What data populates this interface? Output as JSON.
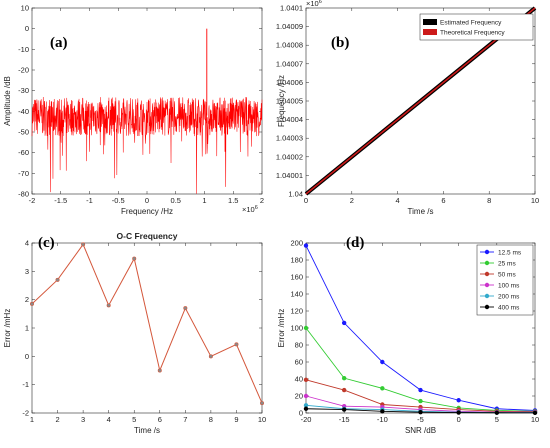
{
  "colors": {
    "red": "#ff0000",
    "dark_red": "#cc1a1a",
    "black": "#000000",
    "line_c": "#d4573b"
  },
  "chart_data": [
    {
      "id": "a",
      "panel_label": "(a)",
      "type": "line",
      "title": "",
      "xlabel": "Frequency /Hz",
      "ylabel": "Amplitude /dB",
      "xlim": [
        -2,
        2
      ],
      "ylim": [
        -80,
        10
      ],
      "x_exponent": "×10",
      "x_exponent_power": "6",
      "xticks": [
        -2,
        -1.5,
        -1,
        -0.5,
        0,
        0.5,
        1,
        1.5,
        2
      ],
      "xtick_labels": [
        "-2",
        "-1.5",
        "-1",
        "-0.5",
        "0",
        "0.5",
        "1",
        "1.5",
        "2"
      ],
      "yticks": [
        -80,
        -70,
        -60,
        -50,
        -40,
        -30,
        -20,
        -10,
        0,
        10
      ],
      "ytick_labels": [
        "-80",
        "-70",
        "-60",
        "-50",
        "-40",
        "-30",
        "-20",
        "-10",
        "0",
        "10"
      ],
      "series": [
        {
          "color": "#ff0000",
          "noise_mean": -42,
          "noise_band": [
            -52,
            -33
          ],
          "peaks": [
            {
              "x": 1.04,
              "y": 0
            }
          ]
        }
      ]
    },
    {
      "id": "b",
      "panel_label": "(b)",
      "type": "line",
      "title": "",
      "xlabel": "Time /s",
      "ylabel": "Frequency /Hz",
      "xlim": [
        0,
        10
      ],
      "ylim": [
        1.04,
        1.0401
      ],
      "y_exponent": "×10",
      "y_exponent_power": "6",
      "xticks": [
        0,
        2,
        4,
        6,
        8,
        10
      ],
      "xtick_labels": [
        "0",
        "2",
        "4",
        "6",
        "8",
        "10"
      ],
      "yticks": [
        1.04,
        1.04001,
        1.04002,
        1.04003,
        1.04004,
        1.04005,
        1.04006,
        1.04007,
        1.04008,
        1.04009,
        1.0401
      ],
      "ytick_labels": [
        "1.04",
        "1.04001",
        "1.04002",
        "1.04003",
        "1.04004",
        "1.04005",
        "1.04006",
        "1.04007",
        "1.04008",
        "1.04009",
        "1.0401"
      ],
      "legend": [
        "Estimated Frequency",
        "Theoretical Frequency"
      ],
      "legend_position": "top-right",
      "series": [
        {
          "name": "Estimated Frequency",
          "color": "#000000",
          "x": [
            0,
            10
          ],
          "y": [
            1.04,
            1.0401
          ]
        },
        {
          "name": "Theoretical Frequency",
          "color": "#cc1a1a",
          "x": [
            0,
            10
          ],
          "y": [
            1.04,
            1.0401
          ]
        }
      ]
    },
    {
      "id": "c",
      "panel_label": "(c)",
      "type": "line",
      "title": "O-C Frequency",
      "xlabel": "Time /s",
      "ylabel": "Error /mHz",
      "xlim": [
        1,
        10
      ],
      "ylim": [
        -2,
        4
      ],
      "xticks": [
        1,
        2,
        3,
        4,
        5,
        6,
        7,
        8,
        9,
        10
      ],
      "xtick_labels": [
        "1",
        "2",
        "3",
        "4",
        "5",
        "6",
        "7",
        "8",
        "9",
        "10"
      ],
      "yticks": [
        -2,
        -1,
        0,
        1,
        2,
        3,
        4
      ],
      "ytick_labels": [
        "-2",
        "-1",
        "0",
        "1",
        "2",
        "3",
        "4"
      ],
      "series": [
        {
          "color": "#d4573b",
          "x": [
            1,
            2,
            3,
            4,
            5,
            6,
            7,
            8,
            9,
            10
          ],
          "y": [
            1.85,
            2.7,
            3.95,
            1.8,
            3.45,
            -0.5,
            1.7,
            0.0,
            0.42,
            -1.65
          ]
        }
      ]
    },
    {
      "id": "d",
      "panel_label": "(d)",
      "type": "line",
      "title": "",
      "xlabel": "SNR /dB",
      "ylabel": "Error /mHz",
      "xlim": [
        -20,
        10
      ],
      "ylim": [
        0,
        200
      ],
      "xticks": [
        -20,
        -15,
        -10,
        -5,
        0,
        5,
        10
      ],
      "xtick_labels": [
        "-20",
        "-15",
        "-10",
        "-5",
        "0",
        "5",
        "10"
      ],
      "yticks": [
        0,
        20,
        40,
        60,
        80,
        100,
        120,
        140,
        160,
        180,
        200
      ],
      "ytick_labels": [
        "0",
        "20",
        "40",
        "60",
        "80",
        "100",
        "120",
        "140",
        "160",
        "180",
        "200"
      ],
      "legend_position": "top-right",
      "x": [
        -20,
        -15,
        -10,
        -5,
        0,
        5,
        10
      ],
      "series": [
        {
          "name": "12.5 ms",
          "color": "#1a1aff",
          "values": [
            197,
            106,
            60,
            27,
            15,
            5,
            3
          ]
        },
        {
          "name": "25 ms",
          "color": "#33cc33",
          "values": [
            100,
            41,
            29,
            14,
            6,
            3,
            2
          ]
        },
        {
          "name": "50 ms",
          "color": "#c0392b",
          "values": [
            39,
            27,
            10,
            7,
            4,
            2,
            1.5
          ]
        },
        {
          "name": "100 ms",
          "color": "#cc33cc",
          "values": [
            20,
            8,
            7,
            4,
            2,
            1,
            1
          ]
        },
        {
          "name": "200 ms",
          "color": "#33aacc",
          "values": [
            9,
            5,
            4,
            2,
            1,
            0.5,
            0.5
          ]
        },
        {
          "name": "400 ms",
          "color": "#000000",
          "values": [
            5,
            4,
            2,
            1,
            0.5,
            0.3,
            0.2
          ]
        }
      ]
    }
  ]
}
